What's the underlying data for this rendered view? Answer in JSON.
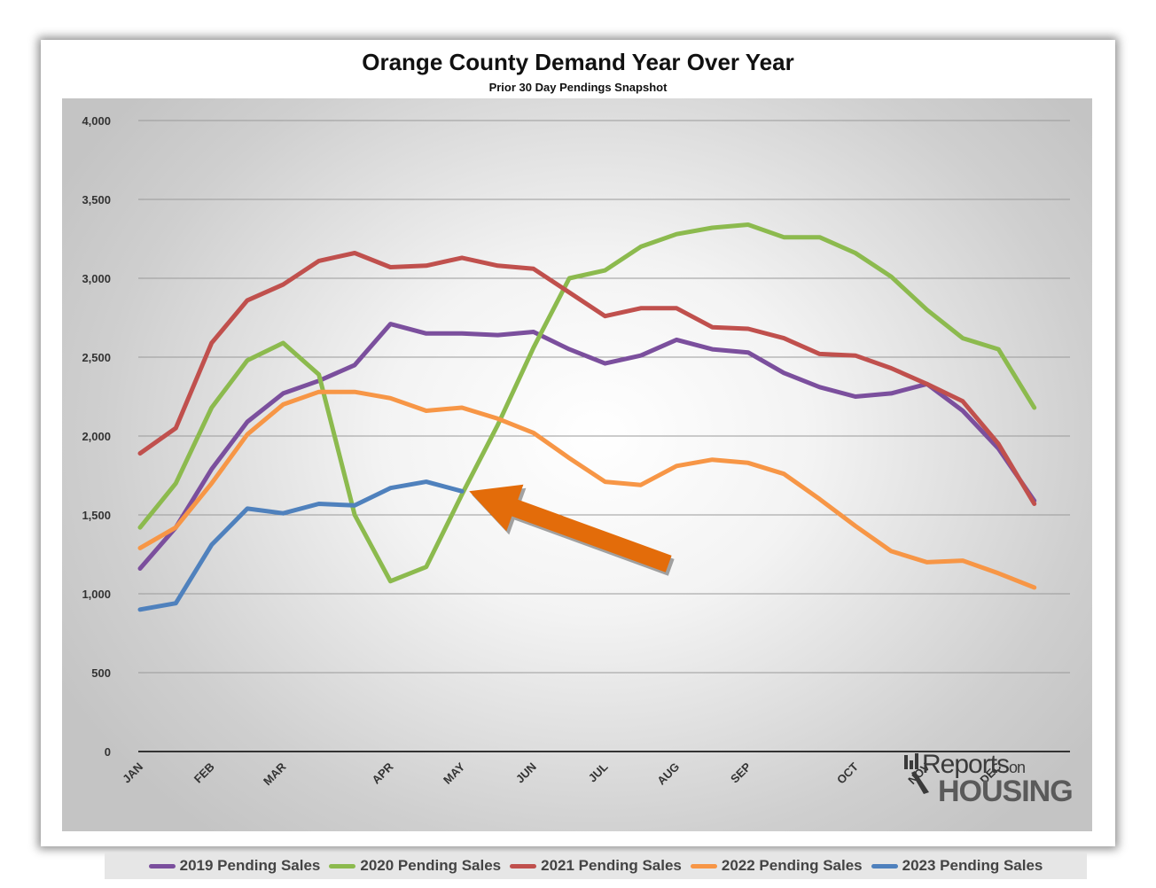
{
  "chart_data": {
    "type": "line",
    "title": "Orange County Demand Year Over Year",
    "subtitle": "Prior 30 Day Pendings Snapshot",
    "xlabel": "",
    "ylabel": "",
    "ylim": [
      0,
      4000
    ],
    "yticks": [
      0,
      500,
      1000,
      1500,
      2000,
      2500,
      3000,
      3500,
      4000
    ],
    "ytick_labels": [
      "0",
      "500",
      "1,000",
      "1,500",
      "2,000",
      "2,500",
      "3,000",
      "3,500",
      "4,000"
    ],
    "x_points": 27,
    "month_labels": [
      {
        "label": "JAN",
        "x": 0
      },
      {
        "label": "FEB",
        "x": 2
      },
      {
        "label": "MAR",
        "x": 4
      },
      {
        "label": "APR",
        "x": 7
      },
      {
        "label": "MAY",
        "x": 9
      },
      {
        "label": "JUN",
        "x": 11
      },
      {
        "label": "JUL",
        "x": 13
      },
      {
        "label": "AUG",
        "x": 15
      },
      {
        "label": "SEP",
        "x": 17
      },
      {
        "label": "OCT",
        "x": 20
      },
      {
        "label": "NOV",
        "x": 22
      },
      {
        "label": "DEC",
        "x": 24
      }
    ],
    "series": [
      {
        "name": "2019 Pending Sales",
        "color": "#7b4f9d",
        "values": [
          1160,
          1420,
          1790,
          2090,
          2270,
          2350,
          2450,
          2710,
          2650,
          2650,
          2640,
          2660,
          2550,
          2460,
          2510,
          2610,
          2550,
          2530,
          2400,
          2310,
          2250,
          2270,
          2330,
          2160,
          1920,
          1590
        ]
      },
      {
        "name": "2020 Pending Sales",
        "color": "#8cba4e",
        "values": [
          1420,
          1700,
          2180,
          2480,
          2590,
          2390,
          1500,
          1080,
          1170,
          1630,
          2070,
          2560,
          3000,
          3050,
          3200,
          3280,
          3320,
          3340,
          3260,
          3260,
          3160,
          3010,
          2800,
          2620,
          2550,
          2180
        ]
      },
      {
        "name": "2021 Pending Sales",
        "color": "#c0504d",
        "values": [
          1890,
          2050,
          2590,
          2860,
          2960,
          3110,
          3160,
          3070,
          3080,
          3130,
          3080,
          3060,
          2910,
          2760,
          2810,
          2810,
          2690,
          2680,
          2620,
          2520,
          2510,
          2430,
          2330,
          2220,
          1950,
          1570
        ]
      },
      {
        "name": "2022 Pending Sales",
        "color": "#f79646",
        "values": [
          1290,
          1420,
          1700,
          2010,
          2200,
          2280,
          2280,
          2240,
          2160,
          2180,
          2110,
          2020,
          1860,
          1710,
          1690,
          1810,
          1850,
          1830,
          1760,
          1600,
          1430,
          1270,
          1200,
          1210,
          1130,
          1040
        ]
      },
      {
        "name": "2023 Pending Sales",
        "color": "#4f81bd",
        "values": [
          900,
          940,
          1310,
          1540,
          1510,
          1570,
          1560,
          1670,
          1710,
          1650
        ]
      }
    ],
    "annotation": {
      "type": "arrow",
      "color": "#e36c0a",
      "points_to_x": 9.2,
      "points_to_y": 1650,
      "description": "points at latest 2023 value"
    }
  },
  "logo": {
    "word_top": "Reports",
    "word_on": "on",
    "word_bottom": "HOUSING"
  }
}
